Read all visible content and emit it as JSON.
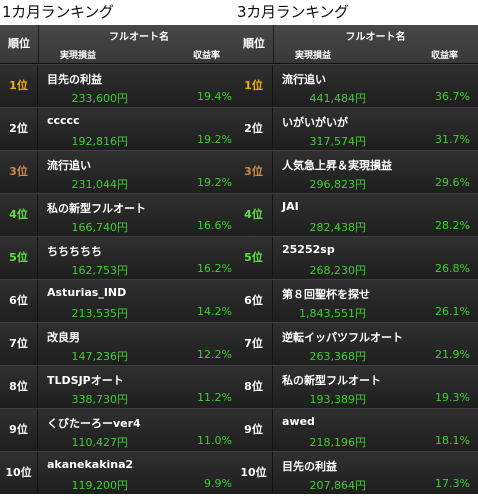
{
  "colors": {
    "gold": "#f0b000",
    "bronze": "#d08a4a",
    "green": "#5fe04a",
    "value_green": "#3fcf32"
  },
  "left": {
    "title": "1カ月ランキング",
    "header": {
      "rank": "順位",
      "name": "フルオート名",
      "profit": "実現損益",
      "rate": "収益率"
    },
    "rows": [
      {
        "rank": "1位",
        "name": "目先の利益",
        "profit": "233,600円",
        "rate": "19.4%"
      },
      {
        "rank": "2位",
        "name": "ccccc",
        "profit": "192,816円",
        "rate": "19.2%"
      },
      {
        "rank": "3位",
        "name": "流行追い",
        "profit": "231,044円",
        "rate": "19.2%"
      },
      {
        "rank": "4位",
        "name": "私の新型フルオート",
        "profit": "166,740円",
        "rate": "16.6%"
      },
      {
        "rank": "5位",
        "name": "ちちちちち",
        "profit": "162,753円",
        "rate": "16.2%"
      },
      {
        "rank": "6位",
        "name": "Asturias_IND",
        "profit": "213,535円",
        "rate": "14.2%"
      },
      {
        "rank": "7位",
        "name": "改良男",
        "profit": "147,236円",
        "rate": "12.2%"
      },
      {
        "rank": "8位",
        "name": "TLDSJPオート",
        "profit": "338,730円",
        "rate": "11.2%"
      },
      {
        "rank": "9位",
        "name": "くびたーろーver4",
        "profit": "110,427円",
        "rate": "11.0%"
      },
      {
        "rank": "10位",
        "name": "akanekakina2",
        "profit": "119,200円",
        "rate": "9.9%"
      }
    ]
  },
  "right": {
    "title": "3カ月ランキング",
    "header": {
      "rank": "順位",
      "name": "フルオート名",
      "profit": "実現損益",
      "rate": "収益率"
    },
    "rows": [
      {
        "rank": "1位",
        "name": "流行追い",
        "profit": "441,484円",
        "rate": "36.7%"
      },
      {
        "rank": "2位",
        "name": "いがいがいが",
        "profit": "317,574円",
        "rate": "31.7%"
      },
      {
        "rank": "3位",
        "name": "人気急上昇＆実現損益",
        "profit": "296,823円",
        "rate": "29.6%"
      },
      {
        "rank": "4位",
        "name": "JAI",
        "profit": "282,438円",
        "rate": "28.2%"
      },
      {
        "rank": "5位",
        "name": "25252sp",
        "profit": "268,230円",
        "rate": "26.8%"
      },
      {
        "rank": "6位",
        "name": "第８回聖杯を探せ",
        "profit": "1,843,551円",
        "rate": "26.1%"
      },
      {
        "rank": "7位",
        "name": "逆転イッパツフルオート",
        "profit": "263,368円",
        "rate": "21.9%"
      },
      {
        "rank": "8位",
        "name": "私の新型フルオート",
        "profit": "193,389円",
        "rate": "19.3%"
      },
      {
        "rank": "9位",
        "name": "awed",
        "profit": "218,196円",
        "rate": "18.1%"
      },
      {
        "rank": "10位",
        "name": "目先の利益",
        "profit": "207,864円",
        "rate": "17.3%"
      }
    ]
  }
}
